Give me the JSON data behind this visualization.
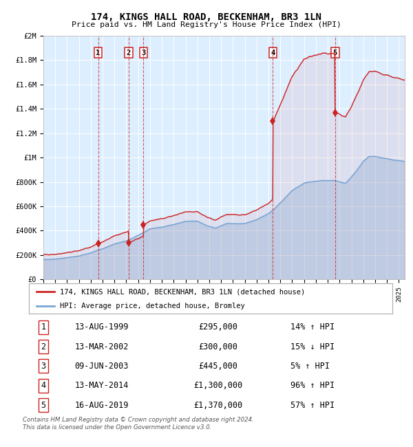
{
  "title": "174, KINGS HALL ROAD, BECKENHAM, BR3 1LN",
  "subtitle": "Price paid vs. HM Land Registry's House Price Index (HPI)",
  "legend_line1": "174, KINGS HALL ROAD, BECKENHAM, BR3 1LN (detached house)",
  "legend_line2": "HPI: Average price, detached house, Bromley",
  "footnote1": "Contains HM Land Registry data © Crown copyright and database right 2024.",
  "footnote2": "This data is licensed under the Open Government Licence v3.0.",
  "hpi_color": "#7aa6d4",
  "price_color": "#cc2222",
  "bg_color": "#ddeeff",
  "grid_color": "#ffffff",
  "transactions": [
    {
      "num": 1,
      "date_num": 1999.62,
      "price": 295000
    },
    {
      "num": 2,
      "date_num": 2002.2,
      "price": 300000
    },
    {
      "num": 3,
      "date_num": 2003.44,
      "price": 445000
    },
    {
      "num": 4,
      "date_num": 2014.37,
      "price": 1300000
    },
    {
      "num": 5,
      "date_num": 2019.62,
      "price": 1370000
    }
  ],
  "table_rows": [
    [
      "1",
      "13-AUG-1999",
      "£295,000",
      "14% ↑ HPI"
    ],
    [
      "2",
      "13-MAR-2002",
      "£300,000",
      "15% ↓ HPI"
    ],
    [
      "3",
      "09-JUN-2003",
      "£445,000",
      "5% ↑ HPI"
    ],
    [
      "4",
      "13-MAY-2014",
      "£1,300,000",
      "96% ↑ HPI"
    ],
    [
      "5",
      "16-AUG-2019",
      "£1,370,000",
      "57% ↑ HPI"
    ]
  ],
  "ylim": [
    0,
    2000000
  ],
  "xlim_start": 1995.0,
  "xlim_end": 2025.5,
  "yticks": [
    0,
    200000,
    400000,
    600000,
    800000,
    1000000,
    1200000,
    1400000,
    1600000,
    1800000,
    2000000
  ],
  "ylabels": [
    "£0",
    "£200K",
    "£400K",
    "£600K",
    "£800K",
    "£1M",
    "£1.2M",
    "£1.4M",
    "£1.6M",
    "£1.8M",
    "£2M"
  ]
}
